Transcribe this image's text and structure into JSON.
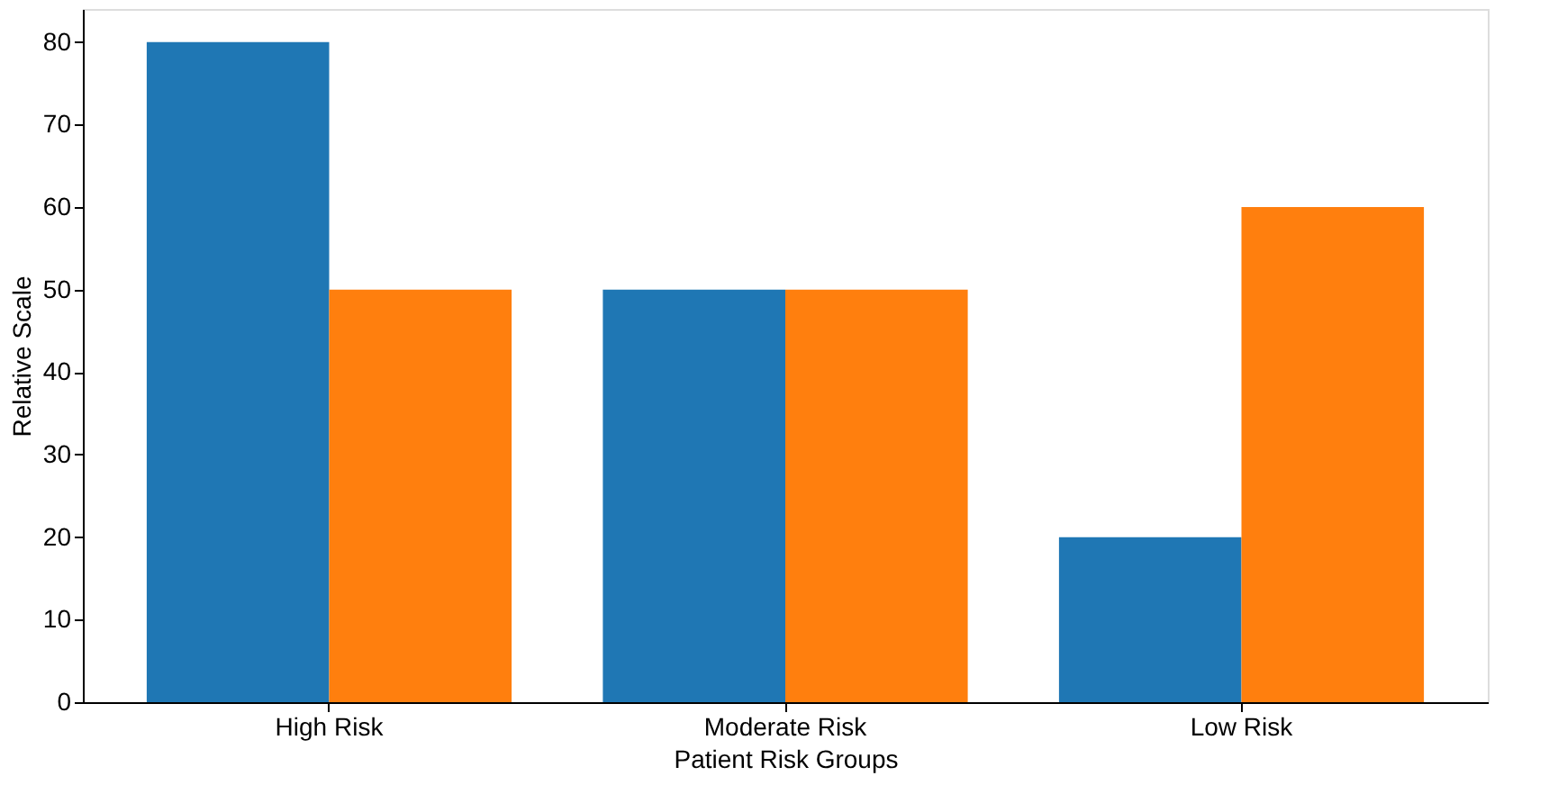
{
  "chart_data": {
    "type": "bar",
    "xlabel": "Patient Risk Groups",
    "ylabel": "Relative Scale",
    "categories": [
      "High Risk",
      "Moderate Risk",
      "Low Risk"
    ],
    "series": [
      {
        "color": "#1f77b4",
        "values": [
          80,
          50,
          20
        ]
      },
      {
        "color": "#ff7f0e",
        "values": [
          50,
          50,
          60
        ]
      }
    ],
    "ylim": [
      0,
      84
    ],
    "yticks": [
      0,
      10,
      20,
      30,
      40,
      50,
      60,
      70,
      80
    ],
    "grid": false,
    "legend": false
  }
}
